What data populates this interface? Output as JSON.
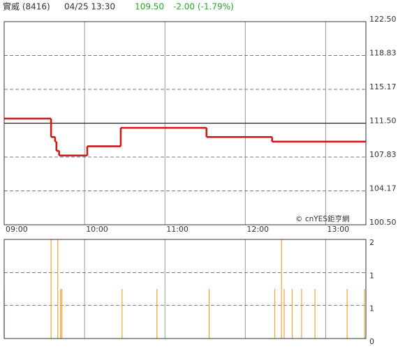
{
  "header": {
    "name": "實威 (8416)",
    "time": "04/25 13:30",
    "price": "109.50",
    "change": "-2.00 (-1.79%)"
  },
  "chart_data": [
    {
      "type": "step-line",
      "watermark": "© cnYES鉅亨網",
      "x": [
        "09:00",
        "09:35",
        "09:38",
        "09:39",
        "09:41",
        "10:02",
        "10:27",
        "11:31",
        "12:20",
        "13:30"
      ],
      "values": [
        112.0,
        110.0,
        109.5,
        108.5,
        108.0,
        109.0,
        111.0,
        110.0,
        109.5,
        109.5
      ],
      "color": "#d01818",
      "previous_close": 111.5,
      "xlim": [
        "09:00",
        "13:30"
      ],
      "xticks": [
        "09:00",
        "10:00",
        "11:00",
        "12:00",
        "13:00"
      ],
      "ylim": [
        100.5,
        122.5
      ],
      "yticks": [
        {
          "value": 100.5,
          "label": "100.50"
        },
        104.17,
        107.83,
        {
          "value": 111.5,
          "label": "111.50"
        },
        115.17,
        118.83,
        {
          "value": 122.5,
          "label": "122.50"
        }
      ],
      "grid": true
    },
    {
      "type": "volume",
      "x": [
        "09:00",
        "09:35",
        "09:40",
        "09:42",
        "09:43",
        "10:28",
        "10:54",
        "11:33",
        "12:22",
        "12:27",
        "12:29",
        "12:35",
        "12:42",
        "12:52",
        "13:16",
        "13:29"
      ],
      "values": [
        1,
        2,
        2,
        1,
        1,
        1,
        1,
        1,
        1,
        2,
        1,
        1,
        1,
        1,
        1,
        1
      ],
      "color": "#f5a033",
      "xlim": [
        "09:00",
        "13:30"
      ],
      "xticks": [
        "09:00",
        "10:00",
        "11:00",
        "12:00",
        "13:00"
      ],
      "ylim": [
        0,
        2
      ],
      "yticks": [
        0,
        {
          "value": 0.67,
          "label": "1"
        },
        {
          "value": 1.33,
          "label": "1"
        },
        2
      ],
      "grid": true
    }
  ]
}
